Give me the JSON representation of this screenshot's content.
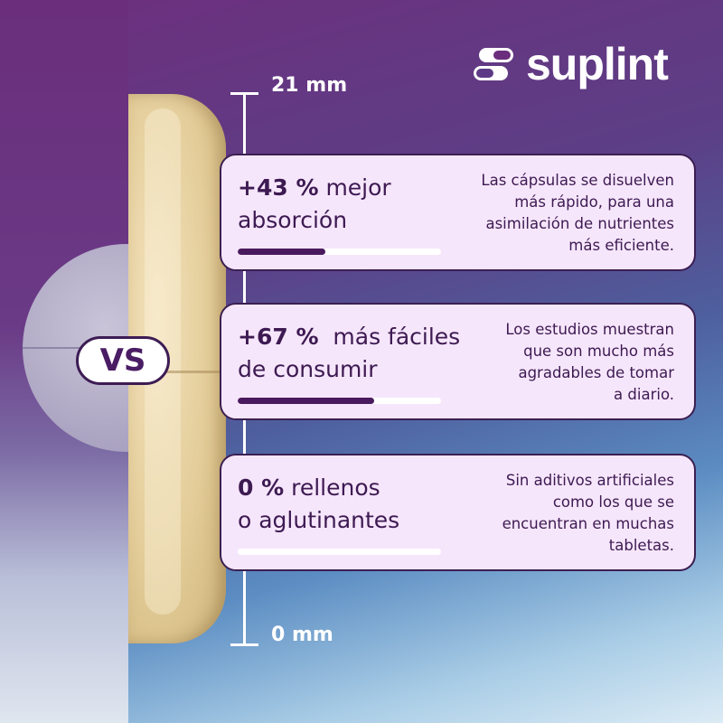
{
  "brand": {
    "name": "suplint",
    "icon": "capsule-logo-icon"
  },
  "ruler": {
    "top_label": "21 mm",
    "bottom_label": "0 mm"
  },
  "vs_label": "VS",
  "colors": {
    "accent": "#4a1a5e",
    "card_bg": "#f6e6fb",
    "card_border": "#3b1f52"
  },
  "cards": [
    {
      "headline_bold": "+43 %",
      "headline_rest": " mejor",
      "headline_line2": "absorción",
      "desc": [
        "Las cápsulas se disuelven",
        "más rápido, para una",
        "asimilación de nutrientes",
        "más eficiente."
      ],
      "progress_percent": 43
    },
    {
      "headline_bold": "+67 %",
      "headline_rest": "  más fáciles",
      "headline_line2": "de consumir",
      "desc": [
        "Los estudios muestran",
        "que son mucho más",
        "agradables de tomar",
        "a diario."
      ],
      "progress_percent": 67
    },
    {
      "headline_bold": "0 %",
      "headline_rest": " rellenos",
      "headline_line2": "o aglutinantes",
      "desc": [
        "Sin aditivos artificiales",
        "como los que se",
        "encuentran en muchas",
        "tabletas."
      ],
      "progress_percent": 0
    }
  ]
}
